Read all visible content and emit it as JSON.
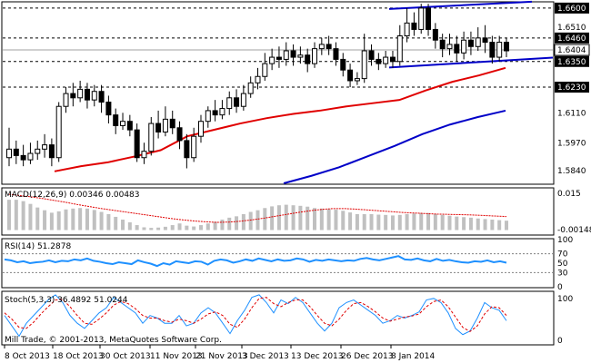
{
  "chart_data": [
    {
      "type": "candlestick",
      "panel": "price",
      "ylim": [
        1.578,
        1.6625
      ],
      "tick_labels": [
        "1.6600",
        "1.6510",
        "1.6460",
        "1.6404",
        "1.6350",
        "1.6230",
        "1.6110",
        "1.5970",
        "1.5840"
      ],
      "levels": [
        1.66,
        1.646,
        1.635,
        1.623
      ],
      "current_price": 1.6404,
      "colors": {
        "up": "#ffffff",
        "down": "#000000",
        "ma_fast": "#e00000",
        "ma_slow": "#0000c8",
        "channel": "#0000c8"
      },
      "candles": [
        [
          1.59,
          1.594,
          1.604,
          1.586
        ],
        [
          1.594,
          1.591,
          1.598,
          1.587
        ],
        [
          1.591,
          1.589,
          1.596,
          1.586
        ],
        [
          1.589,
          1.592,
          1.597,
          1.587
        ],
        [
          1.592,
          1.594,
          1.598,
          1.589
        ],
        [
          1.594,
          1.596,
          1.601,
          1.59
        ],
        [
          1.596,
          1.59,
          1.599,
          1.586
        ],
        [
          1.59,
          1.614,
          1.616,
          1.588
        ],
        [
          1.614,
          1.62,
          1.623,
          1.611
        ],
        [
          1.62,
          1.618,
          1.625,
          1.614
        ],
        [
          1.618,
          1.622,
          1.626,
          1.616
        ],
        [
          1.622,
          1.617,
          1.625,
          1.613
        ],
        [
          1.617,
          1.621,
          1.624,
          1.614
        ],
        [
          1.621,
          1.616,
          1.624,
          1.611
        ],
        [
          1.616,
          1.61,
          1.619,
          1.606
        ],
        [
          1.61,
          1.605,
          1.613,
          1.601
        ],
        [
          1.605,
          1.607,
          1.611,
          1.603
        ],
        [
          1.607,
          1.603,
          1.61,
          1.6
        ],
        [
          1.603,
          1.59,
          1.606,
          1.588
        ],
        [
          1.59,
          1.593,
          1.597,
          1.587
        ],
        [
          1.593,
          1.606,
          1.609,
          1.591
        ],
        [
          1.606,
          1.602,
          1.612,
          1.599
        ],
        [
          1.602,
          1.608,
          1.614,
          1.6
        ],
        [
          1.608,
          1.604,
          1.612,
          1.601
        ],
        [
          1.604,
          1.598,
          1.607,
          1.594
        ],
        [
          1.598,
          1.59,
          1.601,
          1.585
        ],
        [
          1.59,
          1.6,
          1.604,
          1.588
        ],
        [
          1.6,
          1.607,
          1.61,
          1.597
        ],
        [
          1.607,
          1.612,
          1.614,
          1.604
        ],
        [
          1.612,
          1.61,
          1.617,
          1.607
        ],
        [
          1.61,
          1.613,
          1.617,
          1.608
        ],
        [
          1.613,
          1.618,
          1.621,
          1.61
        ],
        [
          1.618,
          1.614,
          1.622,
          1.611
        ],
        [
          1.614,
          1.62,
          1.624,
          1.612
        ],
        [
          1.62,
          1.625,
          1.628,
          1.618
        ],
        [
          1.625,
          1.628,
          1.632,
          1.622
        ],
        [
          1.628,
          1.634,
          1.639,
          1.626
        ],
        [
          1.634,
          1.637,
          1.641,
          1.631
        ],
        [
          1.637,
          1.636,
          1.642,
          1.632
        ],
        [
          1.636,
          1.64,
          1.644,
          1.633
        ],
        [
          1.64,
          1.637,
          1.643,
          1.633
        ],
        [
          1.637,
          1.638,
          1.642,
          1.634
        ],
        [
          1.638,
          1.634,
          1.641,
          1.63
        ],
        [
          1.634,
          1.641,
          1.644,
          1.632
        ],
        [
          1.641,
          1.643,
          1.646,
          1.638
        ],
        [
          1.643,
          1.641,
          1.647,
          1.638
        ],
        [
          1.641,
          1.636,
          1.644,
          1.633
        ],
        [
          1.636,
          1.631,
          1.639,
          1.628
        ],
        [
          1.631,
          1.626,
          1.634,
          1.623
        ],
        [
          1.626,
          1.627,
          1.63,
          1.624
        ],
        [
          1.627,
          1.64,
          1.648,
          1.625
        ],
        [
          1.64,
          1.636,
          1.643,
          1.633
        ],
        [
          1.636,
          1.634,
          1.639,
          1.631
        ],
        [
          1.634,
          1.637,
          1.64,
          1.632
        ],
        [
          1.637,
          1.635,
          1.64,
          1.632
        ],
        [
          1.635,
          1.647,
          1.652,
          1.633
        ],
        [
          1.647,
          1.653,
          1.66,
          1.644
        ],
        [
          1.653,
          1.65,
          1.658,
          1.647
        ],
        [
          1.65,
          1.66,
          1.662,
          1.648
        ],
        [
          1.66,
          1.65,
          1.662,
          1.647
        ],
        [
          1.65,
          1.645,
          1.653,
          1.641
        ],
        [
          1.645,
          1.641,
          1.648,
          1.637
        ],
        [
          1.641,
          1.643,
          1.648,
          1.638
        ],
        [
          1.643,
          1.639,
          1.647,
          1.635
        ],
        [
          1.639,
          1.645,
          1.649,
          1.636
        ],
        [
          1.645,
          1.642,
          1.649,
          1.638
        ],
        [
          1.642,
          1.646,
          1.651,
          1.64
        ],
        [
          1.646,
          1.644,
          1.652,
          1.639
        ],
        [
          1.644,
          1.637,
          1.647,
          1.634
        ],
        [
          1.637,
          1.644,
          1.647,
          1.635
        ],
        [
          1.644,
          1.64,
          1.646,
          1.637
        ]
      ],
      "ma_fast": [
        1.5836,
        1.586,
        1.5878,
        1.5905,
        1.5935,
        1.6,
        1.603,
        1.606,
        1.6085,
        1.6105,
        1.612,
        1.614,
        1.6155,
        1.617,
        1.6215,
        1.6255,
        1.6285,
        1.632
      ],
      "ma_slow": [
        1.578,
        1.5815,
        1.5855,
        1.5905,
        1.5955,
        1.601,
        1.6055,
        1.609,
        1.612
      ],
      "channel_upper": [
        1.6596,
        1.663
      ],
      "channel_lower": [
        1.6322,
        1.6368
      ]
    },
    {
      "type": "bar",
      "panel": "macd",
      "label": "MACD(12,26,9) 0.00346 0.00483",
      "tick_labels": [
        "0.015",
        "-0.00148"
      ],
      "ylim": [
        -0.00148,
        0.015
      ],
      "histogram": [
        0.011,
        0.011,
        0.0105,
        0.0095,
        0.0082,
        0.0072,
        0.0063,
        0.0068,
        0.0075,
        0.0078,
        0.008,
        0.0078,
        0.0073,
        0.0066,
        0.0058,
        0.0048,
        0.0038,
        0.0028,
        0.0018,
        0.001,
        0.0008,
        0.0009,
        0.0012,
        0.0018,
        0.0024,
        0.0016,
        0.0013,
        0.0018,
        0.0024,
        0.003,
        0.0038,
        0.0045,
        0.005,
        0.0058,
        0.0066,
        0.0072,
        0.008,
        0.0086,
        0.009,
        0.0092,
        0.009,
        0.0088,
        0.0085,
        0.008,
        0.0078,
        0.0076,
        0.0074,
        0.007,
        0.0064,
        0.0058,
        0.0058,
        0.0058,
        0.0056,
        0.0055,
        0.0053,
        0.0055,
        0.0058,
        0.006,
        0.0062,
        0.0062,
        0.0058,
        0.0055,
        0.0052,
        0.0049,
        0.0047,
        0.0045,
        0.0042,
        0.004,
        0.0038,
        0.0036,
        0.0034
      ],
      "signal": [
        0.013,
        0.0125,
        0.012,
        0.0114,
        0.0107,
        0.01,
        0.0092,
        0.0085,
        0.0078,
        0.0072,
        0.0066,
        0.006,
        0.0054,
        0.0048,
        0.0042,
        0.0037,
        0.0033,
        0.003,
        0.0028,
        0.0029,
        0.0032,
        0.0037,
        0.0043,
        0.005,
        0.0057,
        0.0064,
        0.007,
        0.0075,
        0.0078,
        0.0078,
        0.0076,
        0.0073,
        0.007,
        0.0067,
        0.0064,
        0.0062,
        0.006,
        0.0058,
        0.0057,
        0.0056,
        0.0055,
        0.0053,
        0.0051,
        0.0049
      ]
    },
    {
      "type": "line",
      "panel": "rsi",
      "label": "RSI(14) 51.2878",
      "tick_labels": [
        "100",
        "70",
        "50",
        "30",
        "0"
      ],
      "levels": [
        70,
        30
      ],
      "ylim": [
        0,
        100
      ],
      "values": [
        58,
        56,
        52,
        54,
        50,
        52,
        53,
        56,
        52,
        55,
        54,
        58,
        56,
        60,
        55,
        53,
        50,
        48,
        52,
        50,
        48,
        56,
        52,
        49,
        44,
        50,
        47,
        54,
        52,
        50,
        54,
        53,
        47,
        55,
        58,
        56,
        51,
        54,
        58,
        55,
        60,
        57,
        54,
        58,
        55,
        56,
        60,
        58,
        53,
        57,
        55,
        58,
        56,
        54,
        56,
        55,
        59,
        61,
        58,
        56,
        59,
        62,
        65,
        58,
        57,
        60,
        56,
        54,
        59,
        55,
        57,
        54,
        52,
        51,
        54,
        53,
        56,
        52,
        54,
        51
      ]
    },
    {
      "type": "line",
      "panel": "stochastic",
      "label": "Stoch(5,3,3) 36.4892 51.0244",
      "tick_labels": [
        "100",
        "0"
      ],
      "ylim": [
        0,
        100
      ],
      "series": [
        {
          "values": [
            55,
            35,
            15,
            40,
            55,
            70,
            85,
            95,
            80,
            55,
            40,
            30,
            45,
            60,
            70,
            90,
            80,
            70,
            60,
            40,
            55,
            50,
            40,
            40,
            55,
            35,
            40,
            60,
            70,
            60,
            40,
            20,
            45,
            65,
            90,
            95,
            80,
            60,
            85,
            78,
            90,
            80,
            60,
            40,
            25,
            40,
            70,
            80,
            85,
            75,
            65,
            55,
            40,
            45,
            55,
            50,
            55,
            62,
            85,
            88,
            80,
            60,
            30,
            18,
            25,
            50,
            80,
            70,
            65,
            45
          ]
        },
        {
          "values": [
            60,
            48,
            32,
            30,
            42,
            58,
            72,
            85,
            86,
            72,
            55,
            40,
            38,
            48,
            60,
            75,
            82,
            78,
            68,
            55,
            50,
            50,
            45,
            42,
            48,
            45,
            40,
            48,
            58,
            62,
            55,
            38,
            32,
            48,
            70,
            88,
            90,
            78,
            72,
            80,
            85,
            85,
            72,
            55,
            40,
            35,
            48,
            65,
            78,
            80,
            72,
            62,
            50,
            44,
            48,
            52,
            54,
            58,
            72,
            82,
            85,
            72,
            52,
            32,
            24,
            35,
            58,
            72,
            70,
            55
          ]
        }
      ]
    }
  ],
  "x_axis": {
    "labels": [
      "8 Oct 2013",
      "18 Oct 2013",
      "30 Oct 2013",
      "11 Nov 2013",
      "21 Nov 2013",
      "3 Dec 2013",
      "13 Dec 2013",
      "26 Dec 2013",
      "8 Jan 2014"
    ]
  },
  "copyright": "Mill Trade, © 2001-2013, MetaQuotes Software Corp."
}
